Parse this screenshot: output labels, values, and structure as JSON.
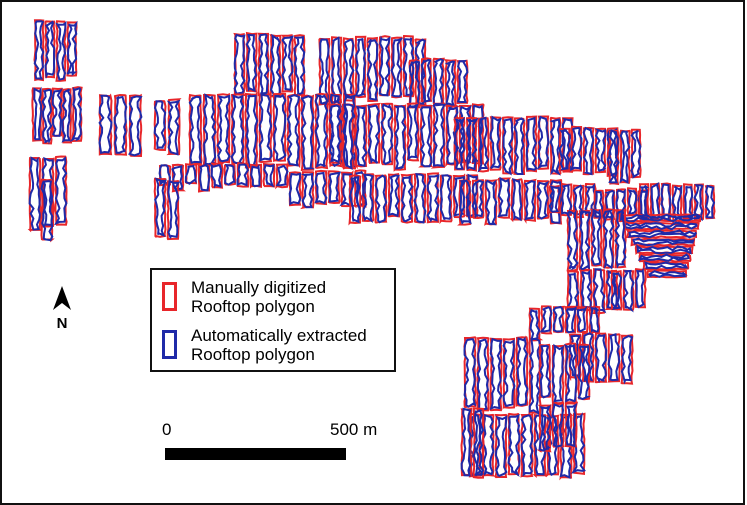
{
  "legend": {
    "items": [
      {
        "line1": "Manually digitized",
        "line2": "Rooftop polygon",
        "color": "#e8262a"
      },
      {
        "line1": "Automatically extracted",
        "line2": "Rooftop polygon",
        "color": "#1f2aa8"
      }
    ]
  },
  "north": {
    "label": "N",
    "icon": "north-arrow-icon"
  },
  "scale": {
    "start_label": "0",
    "end_label": "500 m"
  },
  "colors": {
    "manual": "#e8262a",
    "auto": "#1f2aa8",
    "frame": "#111111"
  }
}
